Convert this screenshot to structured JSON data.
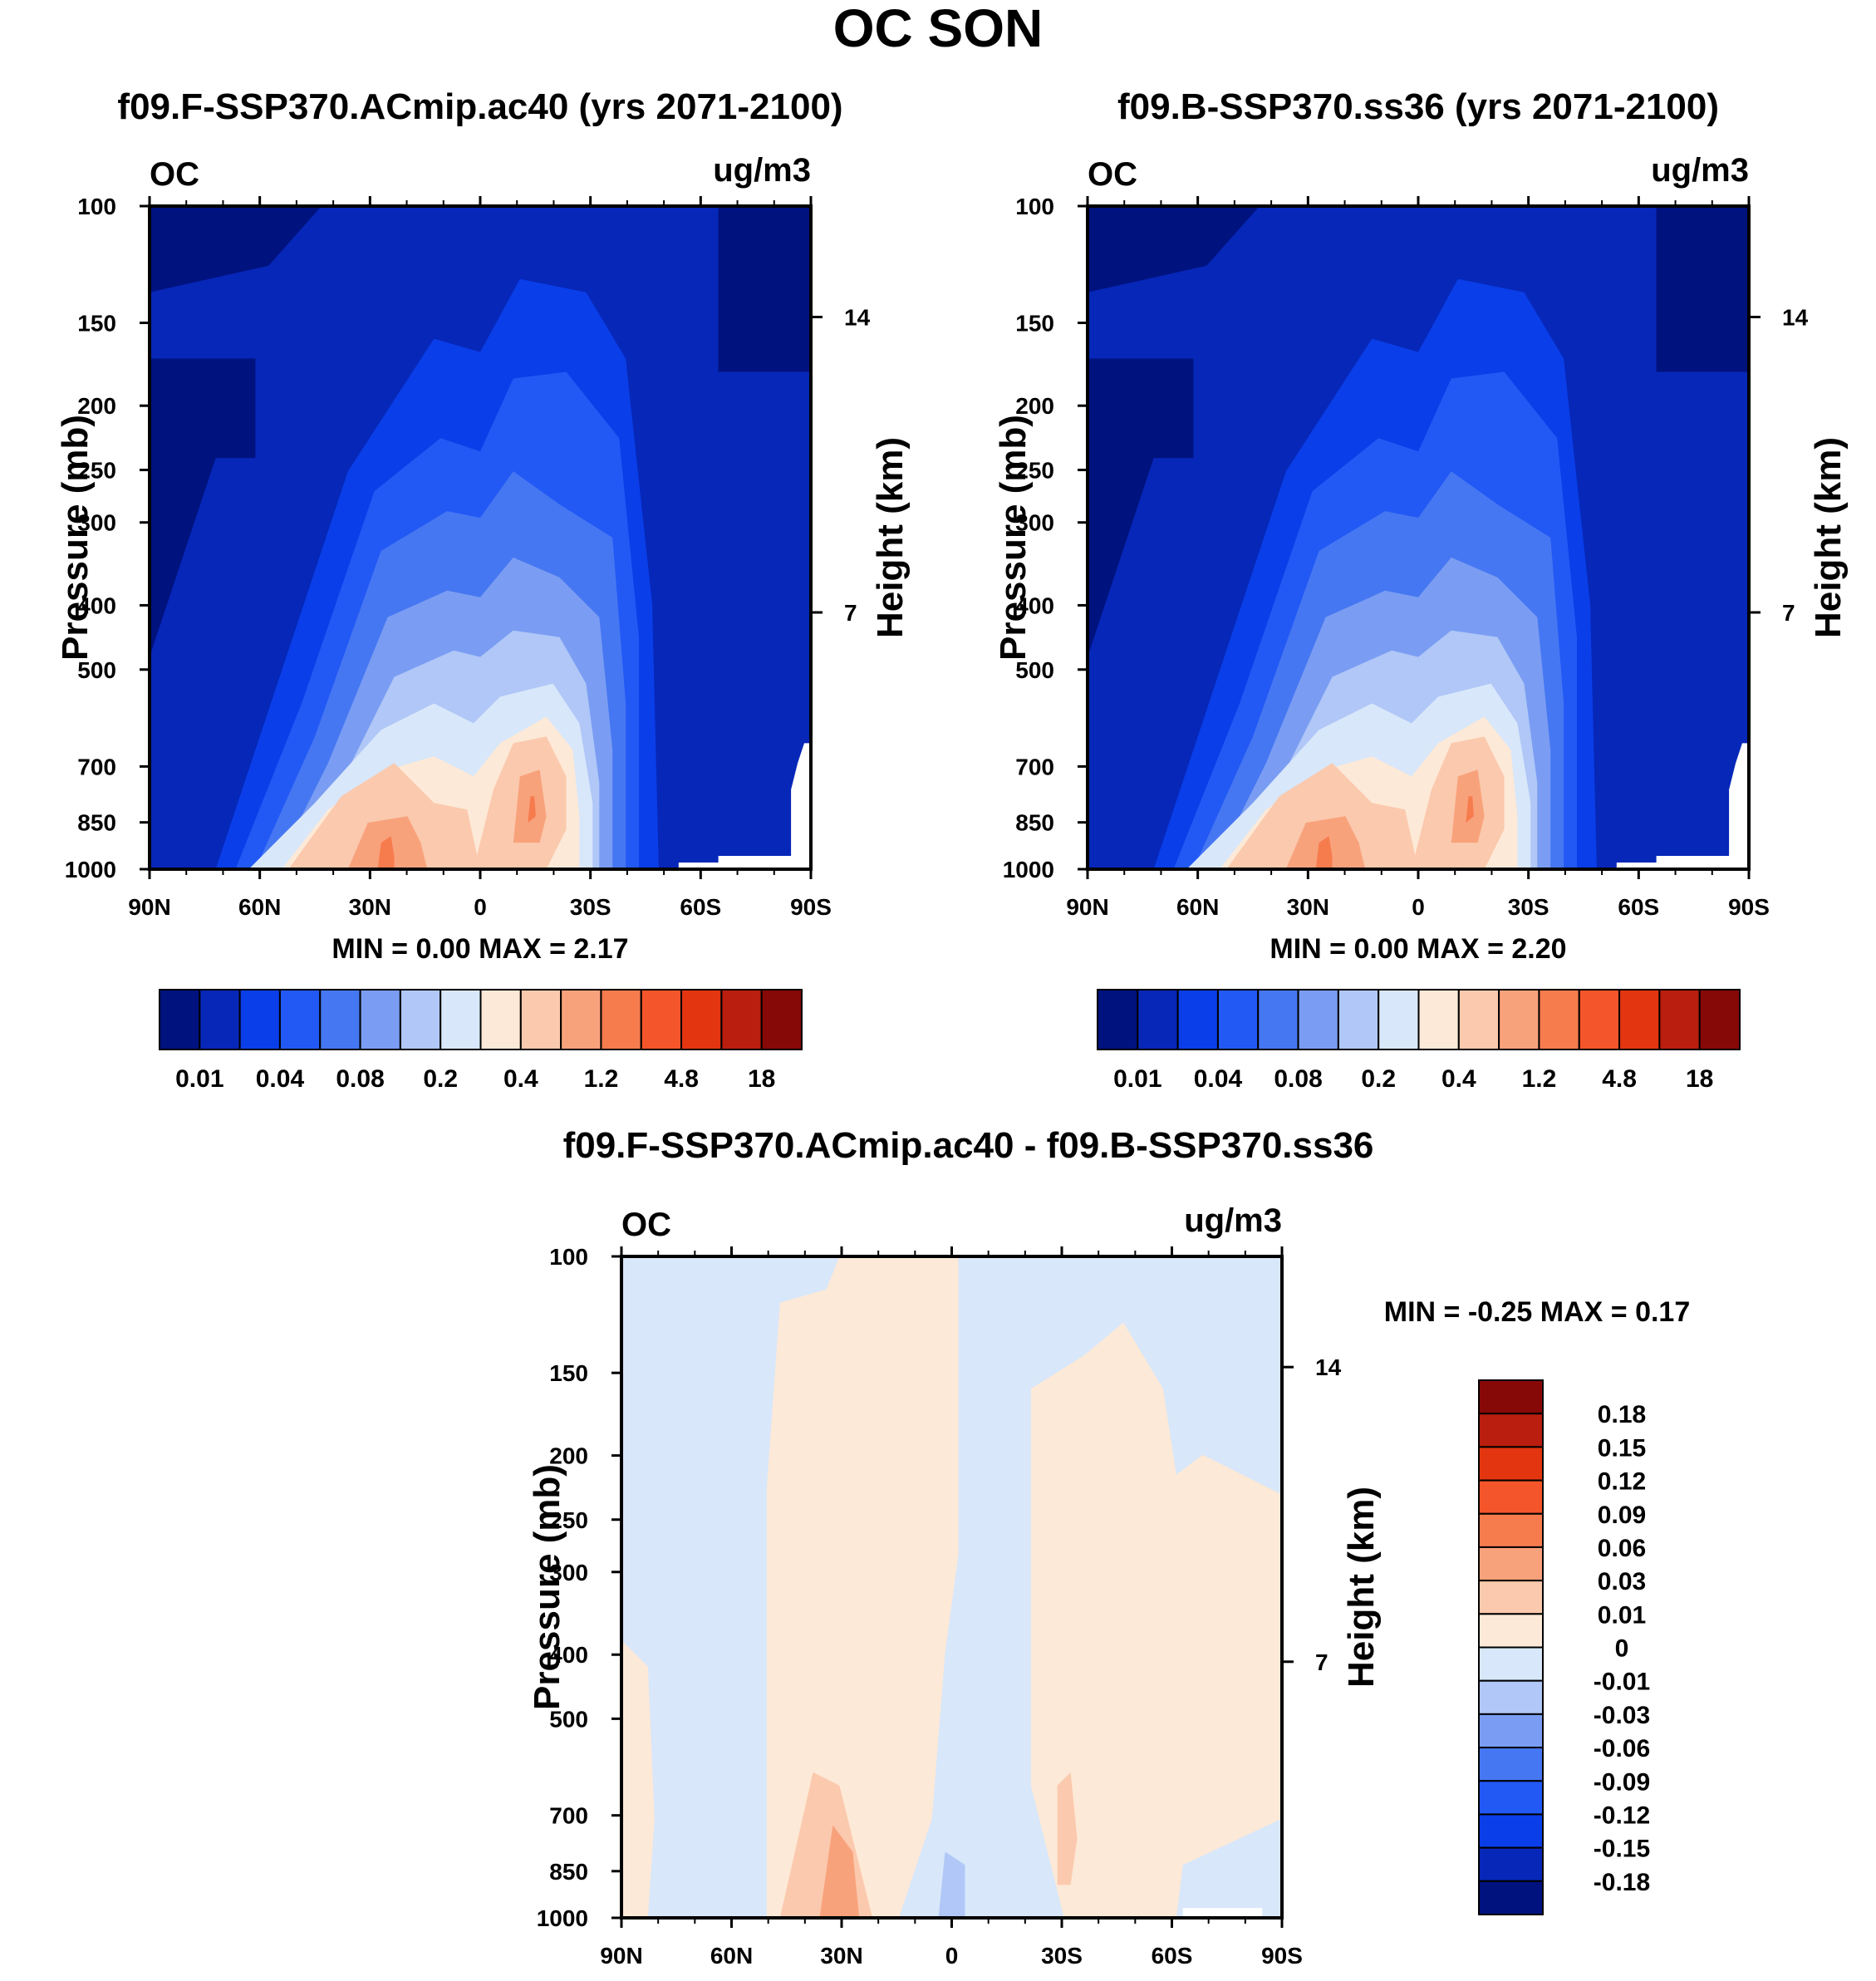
{
  "figure_title": "OC SON",
  "chart_data": [
    {
      "type": "heatmap",
      "title": "f09.F-SSP370.ACmip.ac40 (yrs 2071-2100)",
      "variable": "OC",
      "units": "ug/m3",
      "xlabel": "",
      "ylabel": "Pressure (mb)",
      "ylabel_right": "Height (km)",
      "x_ticks": [
        "90N",
        "60N",
        "30N",
        "0",
        "30S",
        "60S",
        "90S"
      ],
      "y_ticks": [
        "100",
        "150",
        "200",
        "250",
        "300",
        "400",
        "500",
        "700",
        "850",
        "1000"
      ],
      "y_right_ticks": [
        "14",
        "7"
      ],
      "y_range_mb": [
        1000,
        100
      ],
      "stats": {
        "min_label": "MIN =",
        "min": "0.00",
        "max_label": "MAX =",
        "max": "2.17"
      },
      "colorbar": {
        "orientation": "horizontal",
        "colors": [
          "#00127e",
          "#0627b8",
          "#0a3ee8",
          "#2259f5",
          "#4677f2",
          "#7a9df3",
          "#b0c7f7",
          "#d8e7fa",
          "#fde9d7",
          "#fbc9ad",
          "#f8a27c",
          "#f67c4e",
          "#f5552a",
          "#e33610",
          "#b91e0e",
          "#870907"
        ],
        "labels": [
          "0.01",
          "0.04",
          "0.08",
          "0.2",
          "0.4",
          "1.2",
          "4.8",
          "18"
        ]
      }
    },
    {
      "type": "heatmap",
      "title": "f09.B-SSP370.ss36 (yrs 2071-2100)",
      "variable": "OC",
      "units": "ug/m3",
      "xlabel": "",
      "ylabel": "Pressure (mb)",
      "ylabel_right": "Height (km)",
      "x_ticks": [
        "90N",
        "60N",
        "30N",
        "0",
        "30S",
        "60S",
        "90S"
      ],
      "y_ticks": [
        "100",
        "150",
        "200",
        "250",
        "300",
        "400",
        "500",
        "700",
        "850",
        "1000"
      ],
      "y_right_ticks": [
        "14",
        "7"
      ],
      "y_range_mb": [
        1000,
        100
      ],
      "stats": {
        "min_label": "MIN =",
        "min": "0.00",
        "max_label": "MAX =",
        "max": "2.20"
      },
      "colorbar": {
        "orientation": "horizontal",
        "colors": [
          "#00127e",
          "#0627b8",
          "#0a3ee8",
          "#2259f5",
          "#4677f2",
          "#7a9df3",
          "#b0c7f7",
          "#d8e7fa",
          "#fde9d7",
          "#fbc9ad",
          "#f8a27c",
          "#f67c4e",
          "#f5552a",
          "#e33610",
          "#b91e0e",
          "#870907"
        ],
        "labels": [
          "0.01",
          "0.04",
          "0.08",
          "0.2",
          "0.4",
          "1.2",
          "4.8",
          "18"
        ]
      }
    },
    {
      "type": "heatmap",
      "title": "f09.F-SSP370.ACmip.ac40 - f09.B-SSP370.ss36",
      "variable": "OC",
      "units": "ug/m3",
      "xlabel": "",
      "ylabel": "Pressure (mb)",
      "ylabel_right": "Height (km)",
      "x_ticks": [
        "90N",
        "60N",
        "30N",
        "0",
        "30S",
        "60S",
        "90S"
      ],
      "y_ticks": [
        "100",
        "150",
        "200",
        "250",
        "300",
        "400",
        "500",
        "700",
        "850",
        "1000"
      ],
      "y_right_ticks": [
        "14",
        "7"
      ],
      "y_range_mb": [
        1000,
        100
      ],
      "stats": {
        "min_label": "MIN =",
        "min": "-0.25",
        "max_label": "MAX =",
        "max": "0.17"
      },
      "colorbar": {
        "orientation": "vertical",
        "colors": [
          "#870907",
          "#b91e0e",
          "#e33610",
          "#f5552a",
          "#f67c4e",
          "#f8a27c",
          "#fbc9ad",
          "#fde9d7",
          "#d8e7fa",
          "#b0c7f7",
          "#7a9df3",
          "#4677f2",
          "#2259f5",
          "#0a3ee8",
          "#0627b8",
          "#00127e"
        ],
        "labels": [
          "0.18",
          "0.15",
          "0.12",
          "0.09",
          "0.06",
          "0.03",
          "0.01",
          "0",
          "-0.01",
          "-0.03",
          "-0.06",
          "-0.09",
          "-0.12",
          "-0.15",
          "-0.18"
        ]
      }
    }
  ]
}
